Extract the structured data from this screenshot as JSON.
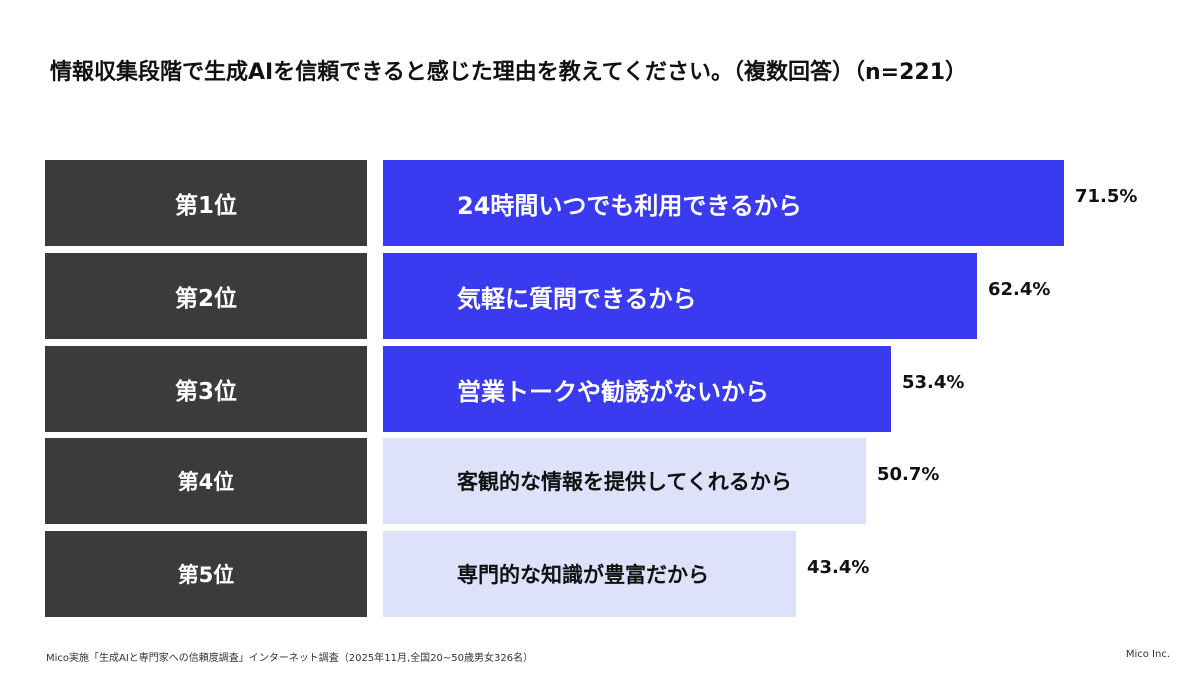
{
  "title": "情報収集段階で生成AIを信頼できると感じた理由を教えてください。（複数回答）（n=221）",
  "footer": {
    "source": "Mico実施「生成AIと専門家への信頼度調査」インターネット調査（2025年11月,全国20~50歳男女326名）",
    "company": "Mico Inc."
  },
  "colors": {
    "rank_box": "#3b3b3b",
    "top_bar": "#3a3af0",
    "light_bar": "#dde1fa",
    "top_text": "#ffffff",
    "light_text": "#111111"
  },
  "chart_data": {
    "type": "bar",
    "orientation": "horizontal",
    "xlim": [
      0,
      100
    ],
    "unit": "%",
    "rows": [
      {
        "rank": "第1位",
        "label": "24時間いつでも利用できるから",
        "value": 71.5,
        "value_label": "71.5%",
        "highlight": true
      },
      {
        "rank": "第2位",
        "label": "気軽に質問できるから",
        "value": 62.4,
        "value_label": "62.4%",
        "highlight": true
      },
      {
        "rank": "第3位",
        "label": "営業トークや勧誘がないから",
        "value": 53.4,
        "value_label": "53.4%",
        "highlight": true
      },
      {
        "rank": "第4位",
        "label": "客観的な情報を提供してくれるから",
        "value": 50.7,
        "value_label": "50.7%",
        "highlight": false
      },
      {
        "rank": "第5位",
        "label": "専門的な知識が豊富だから",
        "value": 43.4,
        "value_label": "43.4%",
        "highlight": false
      }
    ]
  }
}
